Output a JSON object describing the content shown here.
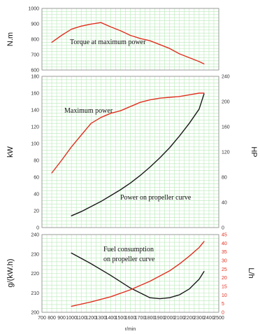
{
  "colors": {
    "red": "#e03020",
    "black": "#1a1a1a",
    "grid": "#b8eab8",
    "panel_border": "#888888"
  },
  "chart_data": [
    {
      "type": "line",
      "name": "torque-panel",
      "ylabel": "N.m",
      "ylim": [
        600,
        1000
      ],
      "y_ticks": [
        "600",
        "700",
        "800",
        "900",
        "1000"
      ],
      "xlim": [
        700,
        2500
      ],
      "grid": true,
      "annotations": [
        {
          "text": "Torque at maximum power"
        }
      ],
      "series": [
        {
          "color": "#e03020",
          "x": [
            800,
            900,
            1000,
            1100,
            1200,
            1300,
            1400,
            1500,
            1600,
            1700,
            1800,
            1900,
            2000,
            2100,
            2200,
            2300,
            2350
          ],
          "y": [
            780,
            825,
            865,
            885,
            898,
            908,
            880,
            855,
            825,
            805,
            790,
            765,
            740,
            705,
            680,
            655,
            640
          ]
        }
      ]
    },
    {
      "type": "line",
      "name": "power-panel",
      "ylabel": "kW",
      "ylim": [
        0,
        180
      ],
      "y_ticks": [
        "0",
        "20",
        "40",
        "60",
        "80",
        "100",
        "120",
        "140",
        "160",
        "180"
      ],
      "y2label": "HP",
      "y2lim": [
        0,
        240
      ],
      "y2_ticks": [
        "0",
        "40",
        "80",
        "120",
        "160",
        "200",
        "240"
      ],
      "xlim": [
        700,
        2500
      ],
      "grid": true,
      "annotations": [
        {
          "text": "Maximum power"
        },
        {
          "text": "Power on propeller curve"
        }
      ],
      "series": [
        {
          "color": "#e03020",
          "x": [
            800,
            900,
            1000,
            1100,
            1200,
            1300,
            1400,
            1500,
            1600,
            1700,
            1800,
            1900,
            2000,
            2100,
            2200,
            2300,
            2350
          ],
          "y": [
            65,
            80,
            96,
            110,
            124,
            131,
            136,
            139,
            144,
            149,
            152,
            154,
            155,
            156,
            158,
            160,
            160
          ]
        },
        {
          "color": "#1a1a1a",
          "x": [
            1000,
            1100,
            1200,
            1300,
            1400,
            1500,
            1600,
            1700,
            1800,
            1900,
            2000,
            2100,
            2200,
            2300,
            2350
          ],
          "y": [
            14,
            19,
            25,
            31,
            38,
            45,
            53,
            62,
            72,
            83,
            95,
            109,
            124,
            141,
            159
          ]
        }
      ]
    },
    {
      "type": "line",
      "name": "fuel-panel",
      "ylabel": "g/(kW.h)",
      "ylim": [
        200,
        240
      ],
      "y_ticks": [
        "200",
        "210",
        "220",
        "230",
        "240"
      ],
      "y2label": "L/h",
      "y2lim": [
        0,
        45
      ],
      "y2_ticks": [
        "0",
        "5",
        "10",
        "15",
        "20",
        "25",
        "30",
        "35",
        "40",
        "45"
      ],
      "xlabel": "r/min",
      "xlim": [
        700,
        2500
      ],
      "x_ticks": [
        "700",
        "800",
        "900",
        "1000",
        "1100",
        "1200",
        "1300",
        "1400",
        "1500",
        "1600",
        "1700",
        "1800",
        "1900",
        "2000",
        "2100",
        "2200",
        "2300",
        "2400",
        "2500"
      ],
      "grid": true,
      "annotations": [
        {
          "text": "Fuel consumption"
        },
        {
          "text": "on propeller curve"
        }
      ],
      "series": [
        {
          "color": "#1a1a1a",
          "axis": "left",
          "x": [
            1000,
            1200,
            1400,
            1600,
            1800,
            1900,
            2000,
            2100,
            2200,
            2300,
            2350
          ],
          "y": [
            230.5,
            225,
            219,
            212.5,
            207.5,
            207,
            207.5,
            209,
            212,
            217,
            221
          ]
        },
        {
          "color": "#e03020",
          "axis": "right",
          "x": [
            1000,
            1200,
            1400,
            1600,
            1800,
            2000,
            2100,
            2200,
            2300,
            2350
          ],
          "y": [
            3.5,
            6,
            9,
            13,
            18,
            24,
            28,
            32.5,
            37.5,
            41
          ]
        }
      ]
    }
  ]
}
